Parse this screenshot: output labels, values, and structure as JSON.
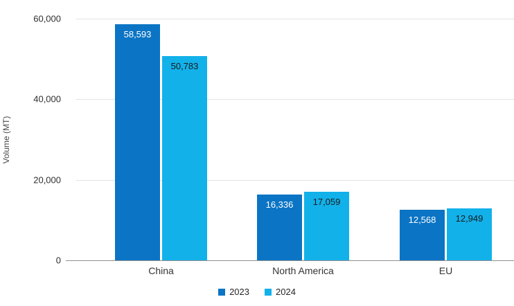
{
  "chart_data": {
    "type": "bar",
    "title": "",
    "xlabel": "",
    "ylabel": "Volume (MT)",
    "categories": [
      "China",
      "North America",
      "EU"
    ],
    "series": [
      {
        "name": "2023",
        "color": "#0b74c4",
        "label_color": "#ffffff",
        "values": [
          58593,
          16336,
          12568
        ],
        "labels": [
          "58,593",
          "16,336",
          "12,568"
        ]
      },
      {
        "name": "2024",
        "color": "#12b1ea",
        "label_color": "#1a1a1a",
        "values": [
          50783,
          17059,
          12949
        ],
        "labels": [
          "50,783",
          "17,059",
          "12,949"
        ]
      }
    ],
    "ylim": [
      0,
      60000
    ],
    "yticks": [
      0,
      20000,
      40000,
      60000
    ],
    "ytick_labels": [
      "0",
      "20,000",
      "40,000",
      "60,000"
    ],
    "grid": true,
    "legend_position": "bottom"
  }
}
